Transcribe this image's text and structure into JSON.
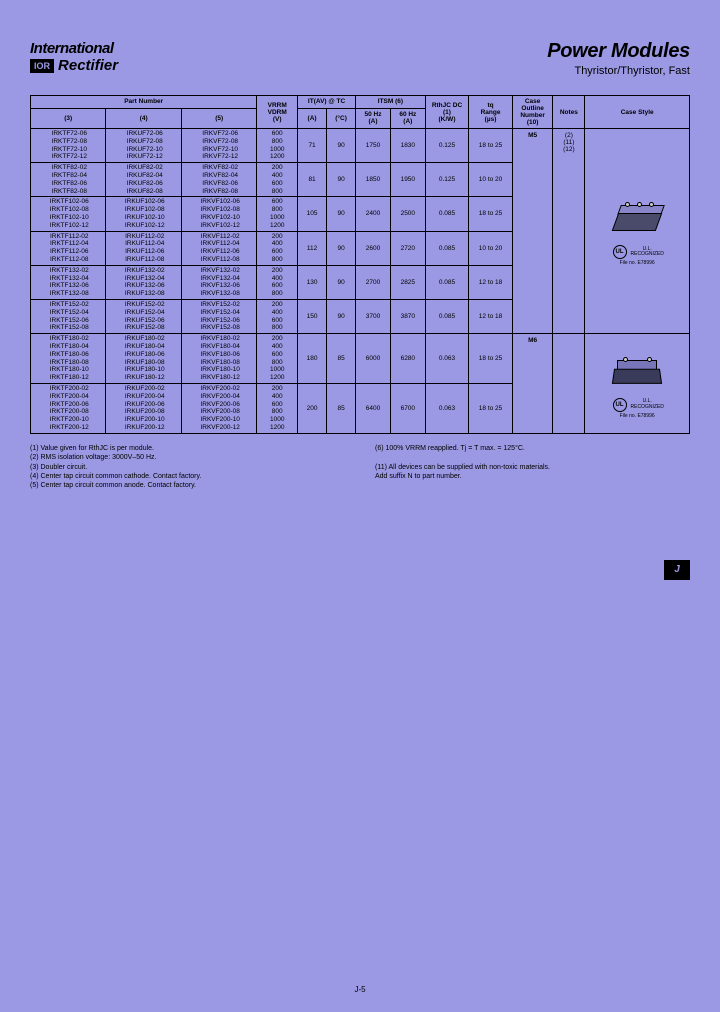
{
  "brand": {
    "line1": "International",
    "line2": "Rectifier",
    "badge": "IOR"
  },
  "title": {
    "main": "Power Modules",
    "sub": "Thyristor/Thyristor, Fast"
  },
  "headers": {
    "part": "Part Number",
    "c3": "(3)",
    "c4": "(4)",
    "c5": "(5)",
    "vrrm": "VRRM\nVDRM\n(V)",
    "itav": "IT(AV) @ TC",
    "a": "(A)",
    "tc": "(°C)",
    "itsm": "ITSM (6)",
    "f50": "50 Hz\n(A)",
    "f60": "60 Hz\n(A)",
    "rthjc": "RthJC DC\n(1)\n(K/W)",
    "tq": "tq\nRange\n(µs)",
    "caseoutline": "Case\nOutline\nNumber\n(10)",
    "notes": "Notes",
    "casestyle": "Case Style"
  },
  "rows": [
    {
      "parts3": [
        "IRKTF72-06",
        "IRKTF72-08",
        "IRKTF72-10",
        "IRKTF72-12"
      ],
      "parts4": [
        "IRKUF72-06",
        "IRKUF72-08",
        "IRKUF72-10",
        "IRKUF72-12"
      ],
      "parts5": [
        "IRKVF72-06",
        "IRKVF72-08",
        "IRKVF72-10",
        "IRKVF72-12"
      ],
      "vrrm": [
        "600",
        "800",
        "1000",
        "1200"
      ],
      "itav_a": "71",
      "itav_tc": "90",
      "itsm50": "1750",
      "itsm60": "1830",
      "rth": "0.125",
      "tq": "18 to 25"
    },
    {
      "parts3": [
        "IRKTF82-02",
        "IRKTF82-04",
        "IRKTF82-06",
        "IRKTF82-08"
      ],
      "parts4": [
        "IRKUF82-02",
        "IRKUF82-04",
        "IRKUF82-06",
        "IRKUF82-08"
      ],
      "parts5": [
        "IRKVF82-02",
        "IRKVF82-04",
        "IRKVF82-06",
        "IRKVF82-08"
      ],
      "vrrm": [
        "200",
        "400",
        "600",
        "800"
      ],
      "itav_a": "81",
      "itav_tc": "90",
      "itsm50": "1850",
      "itsm60": "1950",
      "rth": "0.125",
      "tq": "10 to 20"
    },
    {
      "parts3": [
        "IRKTF102-06",
        "IRKTF102-08",
        "IRKTF102-10",
        "IRKTF102-12"
      ],
      "parts4": [
        "IRKUF102-06",
        "IRKUF102-08",
        "IRKUF102-10",
        "IRKUF102-12"
      ],
      "parts5": [
        "IRKVF102-06",
        "IRKVF102-08",
        "IRKVF102-10",
        "IRKVF102-12"
      ],
      "vrrm": [
        "600",
        "800",
        "1000",
        "1200"
      ],
      "itav_a": "105",
      "itav_tc": "90",
      "itsm50": "2400",
      "itsm60": "2500",
      "rth": "0.085",
      "tq": "18 to 25"
    },
    {
      "parts3": [
        "IRKTF112-02",
        "IRKTF112-04",
        "IRKTF112-06",
        "IRKTF112-08"
      ],
      "parts4": [
        "IRKUF112-02",
        "IRKUF112-04",
        "IRKUF112-06",
        "IRKUF112-08"
      ],
      "parts5": [
        "IRKVF112-02",
        "IRKVF112-04",
        "IRKVF112-06",
        "IRKVF112-08"
      ],
      "vrrm": [
        "200",
        "400",
        "600",
        "800"
      ],
      "itav_a": "112",
      "itav_tc": "90",
      "itsm50": "2600",
      "itsm60": "2720",
      "rth": "0.085",
      "tq": "10 to 20"
    },
    {
      "parts3": [
        "IRKTF132-02",
        "IRKTF132-04",
        "IRKTF132-06",
        "IRKTF132-08"
      ],
      "parts4": [
        "IRKUF132-02",
        "IRKUF132-04",
        "IRKUF132-06",
        "IRKUF132-08"
      ],
      "parts5": [
        "IRKVF132-02",
        "IRKVF132-04",
        "IRKVF132-06",
        "IRKVF132-08"
      ],
      "vrrm": [
        "200",
        "400",
        "600",
        "800"
      ],
      "itav_a": "130",
      "itav_tc": "90",
      "itsm50": "2700",
      "itsm60": "2825",
      "rth": "0.085",
      "tq": "12 to 18"
    },
    {
      "parts3": [
        "IRKTF152-02",
        "IRKTF152-04",
        "IRKTF152-06",
        "IRKTF152-08"
      ],
      "parts4": [
        "IRKUF152-02",
        "IRKUF152-04",
        "IRKUF152-06",
        "IRKUF152-08"
      ],
      "parts5": [
        "IRKVF152-02",
        "IRKVF152-04",
        "IRKVF152-06",
        "IRKVF152-08"
      ],
      "vrrm": [
        "200",
        "400",
        "600",
        "800"
      ],
      "itav_a": "150",
      "itav_tc": "90",
      "itsm50": "3700",
      "itsm60": "3870",
      "rth": "0.085",
      "tq": "12 to 18"
    },
    {
      "parts3": [
        "IRKTF180-02",
        "IRKTF180-04",
        "IRKTF180-06",
        "IRKTF180-08",
        "IRKTF180-10",
        "IRKTF180-12"
      ],
      "parts4": [
        "IRKUF180-02",
        "IRKUF180-04",
        "IRKUF180-06",
        "IRKUF180-08",
        "IRKUF180-10",
        "IRKUF180-12"
      ],
      "parts5": [
        "IRKVF180-02",
        "IRKVF180-04",
        "IRKVF180-06",
        "IRKVF180-08",
        "IRKVF180-10",
        "IRKVF180-12"
      ],
      "vrrm": [
        "200",
        "400",
        "600",
        "800",
        "1000",
        "1200"
      ],
      "itav_a": "180",
      "itav_tc": "85",
      "itsm50": "6000",
      "itsm60": "6280",
      "rth": "0.063",
      "tq": "18 to 25"
    },
    {
      "parts3": [
        "IRKTF200-02",
        "IRKTF200-04",
        "IRKTF200-06",
        "IRKTF200-08",
        "IRKTF200-10",
        "IRKTF200-12"
      ],
      "parts4": [
        "IRKUF200-02",
        "IRKUF200-04",
        "IRKUF200-06",
        "IRKUF200-08",
        "IRKUF200-10",
        "IRKUF200-12"
      ],
      "parts5": [
        "IRKVF200-02",
        "IRKVF200-04",
        "IRKVF200-06",
        "IRKVF200-08",
        "IRKVF200-10",
        "IRKVF200-12"
      ],
      "vrrm": [
        "200",
        "400",
        "600",
        "800",
        "1000",
        "1200"
      ],
      "itav_a": "200",
      "itav_tc": "85",
      "itsm50": "6400",
      "itsm60": "6700",
      "rth": "0.063",
      "tq": "18 to 25"
    }
  ],
  "caseOutlines": {
    "m5": "M5",
    "m6": "M6"
  },
  "noteRefs": {
    "n2": "(2)",
    "n11": "(11)",
    "n12": "(12)"
  },
  "ul": {
    "label1": "U.L.\nRECOGNIZED",
    "file1": "File no. E78996",
    "label2": "U.L.\nRECOGNIZED",
    "file2": "File no. E78996"
  },
  "footnotes": {
    "left": [
      "(1) Value given for RthJC is per module.",
      "(2) RMS isolation voltage: 3000V–50 Hz.",
      "(3) Doubler circuit.",
      "(4) Center tap circuit common cathode. Contact factory.",
      "(5) Center tap circuit common anode. Contact factory."
    ],
    "right": [
      "(6) 100% VRRM reapplied. Tj = T max. = 125°C.",
      "",
      "(11) All devices can be supplied with non-toxic materials.",
      "       Add suffix N to part number."
    ]
  },
  "sideTab": "J",
  "pageNum": "J-5",
  "colors": {
    "pageBg": "#9b99e3",
    "text": "#000000",
    "tabBg": "#000000",
    "tabFg": "#9b99e3"
  }
}
